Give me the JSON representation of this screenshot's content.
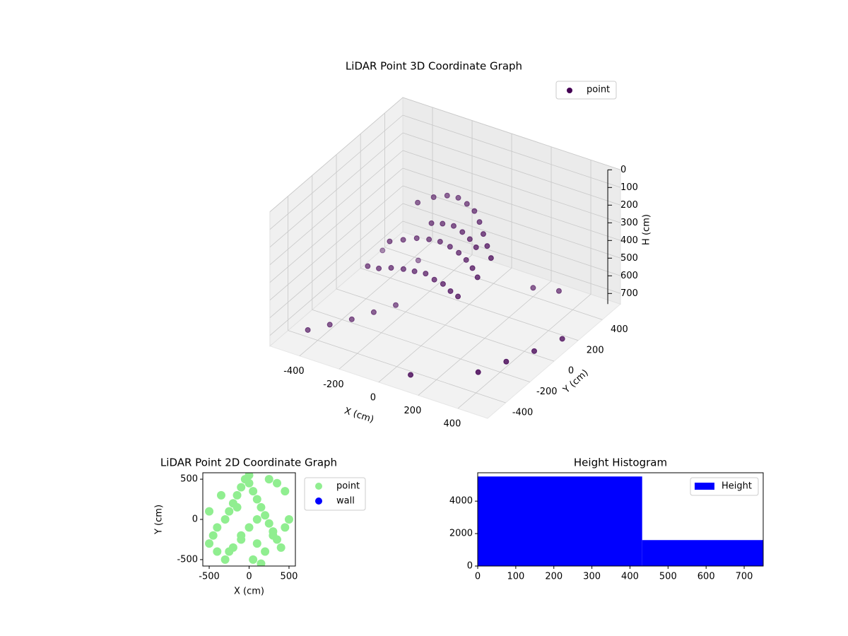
{
  "chart_data": [
    {
      "type": "scatter3d",
      "title": "LiDAR Point 3D Coordinate Graph",
      "x_label": "X (cm)",
      "y_label": "Y (cm)",
      "z_label": "H (cm)",
      "xlim": [
        -550,
        550
      ],
      "ylim": [
        -550,
        550
      ],
      "zlim": [
        0,
        760
      ],
      "xticks": [
        -400,
        -200,
        0,
        200,
        400
      ],
      "yticks": [
        -400,
        -200,
        0,
        200,
        400
      ],
      "zticks": [
        0,
        100,
        200,
        300,
        400,
        500,
        600,
        700
      ],
      "z_inverted": true,
      "grid": true,
      "legend": "upper right",
      "series": [
        {
          "name": "point",
          "color": "#440154",
          "x": [
            -200,
            -150,
            -100,
            -50,
            0,
            50,
            100,
            150,
            200,
            250,
            -250,
            -200,
            -150,
            -100,
            -50,
            0,
            50,
            100,
            150,
            200,
            -300,
            -250,
            -200,
            -150,
            -100,
            -50,
            0,
            50,
            100,
            150,
            -100,
            -50,
            0,
            50,
            100,
            150,
            -450,
            -400,
            -350,
            -300,
            -250,
            350,
            400,
            450,
            500,
            -500,
            200,
            300,
            -350,
            100
          ],
          "y": [
            100,
            150,
            180,
            190,
            180,
            160,
            120,
            70,
            20,
            -30,
            -50,
            -20,
            10,
            30,
            40,
            40,
            30,
            10,
            -20,
            -60,
            -150,
            -140,
            -120,
            -100,
            -90,
            -80,
            -90,
            -100,
            -120,
            -140,
            50,
            60,
            70,
            60,
            40,
            10,
            -400,
            -300,
            -200,
            -100,
            0,
            -300,
            -150,
            0,
            150,
            300,
            400,
            450,
            350,
            -450
          ],
          "z": [
            200,
            180,
            170,
            170,
            180,
            190,
            210,
            230,
            250,
            270,
            350,
            340,
            330,
            330,
            330,
            340,
            350,
            360,
            370,
            380,
            450,
            450,
            440,
            440,
            440,
            440,
            450,
            450,
            460,
            460,
            250,
            240,
            240,
            250,
            260,
            270,
            720,
            730,
            740,
            740,
            740,
            720,
            730,
            740,
            740,
            700,
            710,
            720,
            730,
            740
          ]
        }
      ]
    },
    {
      "type": "scatter",
      "title": "LiDAR Point 2D Coordinate Graph",
      "x_label": "X (cm)",
      "y_label": "Y (cm)",
      "xlim": [
        -580,
        580
      ],
      "ylim": [
        -580,
        580
      ],
      "xticks": [
        -500,
        0,
        500
      ],
      "yticks": [
        -500,
        0,
        500
      ],
      "legend": "outside right",
      "series": [
        {
          "name": "point",
          "color": "#90ee90",
          "x": [
            -500,
            -450,
            -400,
            -300,
            -250,
            -200,
            -150,
            -100,
            -50,
            0,
            50,
            100,
            150,
            200,
            250,
            300,
            350,
            400,
            450,
            500,
            -400,
            -300,
            -200,
            -100,
            0,
            100,
            200,
            300,
            -350,
            -150,
            50,
            250,
            450,
            -500,
            -250,
            0,
            150,
            350,
            -100,
            100
          ],
          "y": [
            -300,
            -200,
            -100,
            0,
            100,
            200,
            300,
            400,
            500,
            450,
            350,
            250,
            150,
            50,
            -50,
            -150,
            -250,
            -350,
            -100,
            0,
            -400,
            -500,
            -350,
            -200,
            -100,
            -300,
            -400,
            -200,
            300,
            150,
            -500,
            500,
            350,
            100,
            -400,
            550,
            -550,
            450,
            -250,
            0
          ]
        },
        {
          "name": "wall",
          "color": "#0000ff",
          "x": [],
          "y": []
        }
      ]
    },
    {
      "type": "histogram",
      "title": "Height Histogram",
      "legend": "upper right",
      "xlim": [
        0,
        750
      ],
      "ylim": [
        0,
        5750
      ],
      "xticks": [
        0,
        100,
        200,
        300,
        400,
        500,
        600,
        700
      ],
      "yticks": [
        0,
        2000,
        4000
      ],
      "series": [
        {
          "name": "Height",
          "color": "#0000ff",
          "bins": [
            0,
            432,
            750
          ],
          "values": [
            5520,
            1600
          ]
        }
      ]
    }
  ]
}
